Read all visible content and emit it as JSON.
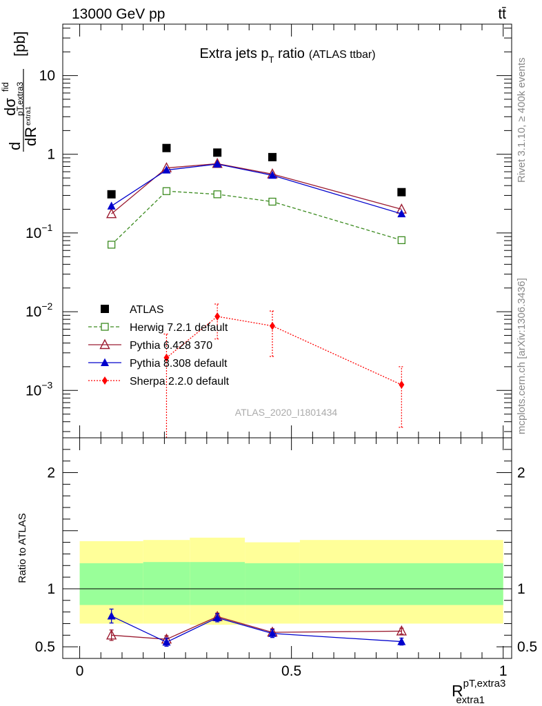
{
  "header": {
    "energy_label": "13000 GeV pp",
    "process_label": "tt̄"
  },
  "side_labels": {
    "rivet": "Rivet 3.1.10, ≥ 400k events",
    "mcplots": "mcplots.cern.ch [arXiv:1306.3436]"
  },
  "chart_data": [
    {
      "type": "scatter",
      "title": "Extra jets p_T ratio",
      "title_main": "Extra jets p",
      "title_sub": "T",
      "title_rest": " ratio",
      "subtitle": "(ATLAS ttbar)",
      "ylabel": "dσ^fid / dR^{pT,extra3}_{extra1} [pb]",
      "ylabel_parts": {
        "d1": "d",
        "sigma": "dσ",
        "fid": "fid",
        "sub1": "pT,extra3",
        "dR": "dR",
        "sub2": "extra1",
        "unit": "[pb]"
      },
      "yscale": "log",
      "ylim": [
        0.00025,
        45
      ],
      "xlim": [
        -0.04,
        1.02
      ],
      "y_ticks": [
        {
          "value": 0.001,
          "label": "10",
          "exp": "−3"
        },
        {
          "value": 0.01,
          "label": "10",
          "exp": "−2"
        },
        {
          "value": 0.1,
          "label": "10",
          "exp": "−1"
        },
        {
          "value": 1,
          "label": "1",
          "exp": ""
        },
        {
          "value": 10,
          "label": "10",
          "exp": ""
        }
      ],
      "watermark": "ATLAS_2020_I1801434",
      "legend_position": "bottom-left",
      "x": [
        0.075,
        0.205,
        0.325,
        0.455,
        0.76
      ],
      "series": [
        {
          "name": "ATLAS",
          "color": "#000000",
          "marker": "square",
          "line": "none",
          "values": [
            0.31,
            1.2,
            1.05,
            0.92,
            0.33
          ]
        },
        {
          "name": "Herwig 7.2.1 default",
          "color": "#3a8a1e",
          "marker": "open-square",
          "line": "dashed",
          "values": [
            0.071,
            0.34,
            0.31,
            0.25,
            0.081
          ]
        },
        {
          "name": "Pythia 6.428 370",
          "color": "#9b1b30",
          "marker": "open-triangle",
          "line": "solid",
          "values": [
            0.175,
            0.67,
            0.76,
            0.56,
            0.2
          ]
        },
        {
          "name": "Pythia 8.308 default",
          "color": "#0000cc",
          "marker": "triangle",
          "line": "solid",
          "values": [
            0.22,
            0.63,
            0.75,
            0.54,
            0.175
          ]
        },
        {
          "name": "Sherpa 2.2.0 default",
          "color": "#ff0000",
          "marker": "diamond",
          "line": "dotted",
          "values": [
            null,
            0.0026,
            0.0087,
            0.0066,
            0.00118
          ],
          "err_low": [
            null,
            0.00025,
            0.0045,
            0.0027,
            0.00034
          ],
          "err_high": [
            null,
            0.0052,
            0.0125,
            0.0102,
            0.002
          ]
        }
      ]
    },
    {
      "type": "scatter",
      "ylabel": "Ratio to ATLAS",
      "xlabel": "R^{pT,extra3}_{extra1}",
      "xlabel_parts": {
        "main": "R",
        "sup": "pT,extra3",
        "sub": "extra1"
      },
      "ylim": [
        0.4,
        2.3
      ],
      "xlim": [
        -0.04,
        1.02
      ],
      "y_ticks": [
        {
          "value": 0.5,
          "label": "0.5"
        },
        {
          "value": 1,
          "label": "1"
        },
        {
          "value": 2,
          "label": "2"
        }
      ],
      "x_ticks": [
        {
          "value": 0,
          "label": "0"
        },
        {
          "value": 0.5,
          "label": "0.5"
        },
        {
          "value": 1,
          "label": "1"
        }
      ],
      "bands": {
        "outer_color": "#ffff99",
        "inner_color": "#99ff99",
        "bins": [
          {
            "x0": 0.0,
            "x1": 0.15,
            "outer": [
              0.7,
              1.41
            ],
            "inner": [
              0.86,
              1.22
            ]
          },
          {
            "x0": 0.15,
            "x1": 0.26,
            "outer": [
              0.7,
              1.42
            ],
            "inner": [
              0.86,
              1.23
            ]
          },
          {
            "x0": 0.26,
            "x1": 0.39,
            "outer": [
              0.69,
              1.44
            ],
            "inner": [
              0.86,
              1.23
            ]
          },
          {
            "x0": 0.39,
            "x1": 0.52,
            "outer": [
              0.7,
              1.4
            ],
            "inner": [
              0.86,
              1.22
            ]
          },
          {
            "x0": 0.52,
            "x1": 1.0,
            "outer": [
              0.7,
              1.42
            ],
            "inner": [
              0.86,
              1.22
            ]
          }
        ]
      },
      "x": [
        0.075,
        0.205,
        0.325,
        0.455,
        0.76
      ],
      "series": [
        {
          "name": "Pythia 6.428 370",
          "color": "#9b1b30",
          "marker": "open-triangle",
          "values": [
            0.6,
            0.565,
            0.76,
            0.625,
            0.635
          ],
          "err": [
            0.045,
            0.03,
            0.03,
            0.03,
            0.025
          ]
        },
        {
          "name": "Pythia 8.308 default",
          "color": "#0000cc",
          "marker": "triangle",
          "values": [
            0.765,
            0.54,
            0.75,
            0.615,
            0.545
          ],
          "err": [
            0.06,
            0.035,
            0.035,
            0.035,
            0.03
          ]
        }
      ]
    }
  ]
}
